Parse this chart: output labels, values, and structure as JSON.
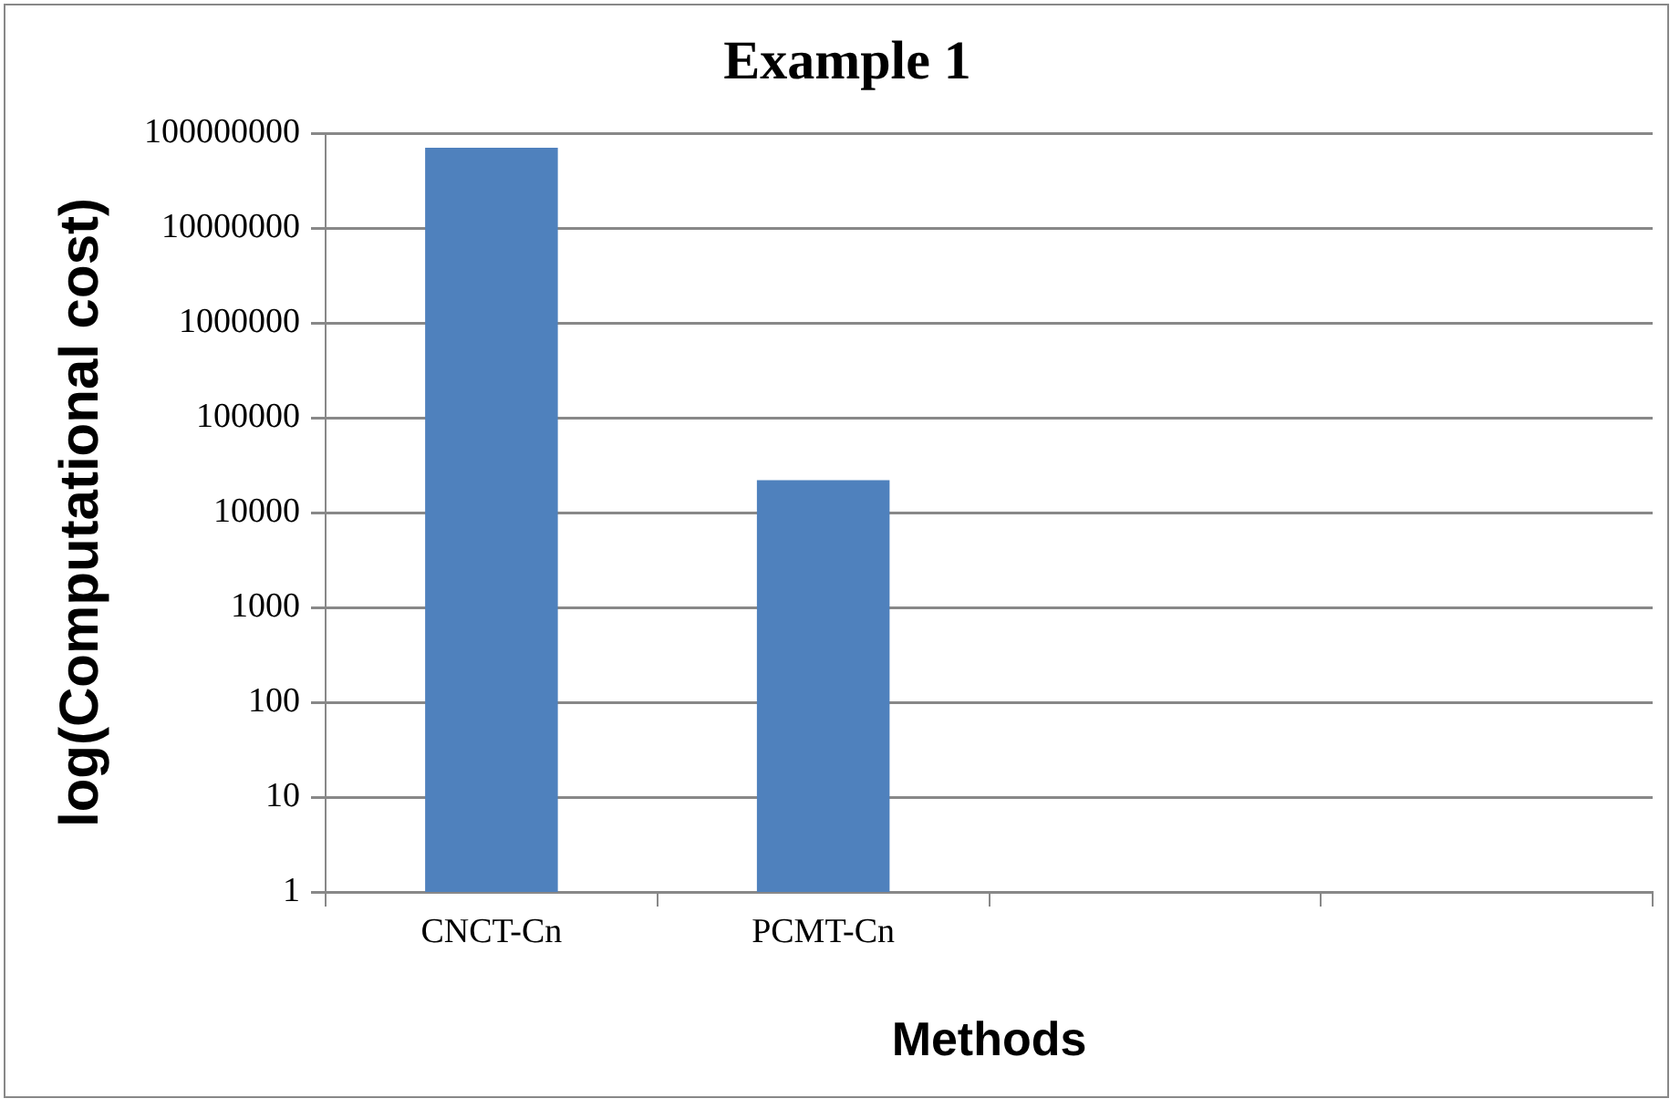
{
  "chart_data": {
    "type": "bar",
    "title": "Example 1",
    "xlabel": "Methods",
    "ylabel": "log(Computational cost)",
    "categories": [
      "CNCT-Cn",
      "PCMT-Cn",
      null,
      null
    ],
    "series": [
      {
        "color": "#4f81bd",
        "values": [
          70000000,
          22000,
          null,
          null
        ]
      }
    ],
    "log": true,
    "ylim": [
      1,
      100000000
    ],
    "yticks": [
      1,
      10,
      100,
      1000,
      10000,
      100000,
      1000000,
      10000000,
      100000000
    ],
    "grid": "y",
    "legend": false
  }
}
